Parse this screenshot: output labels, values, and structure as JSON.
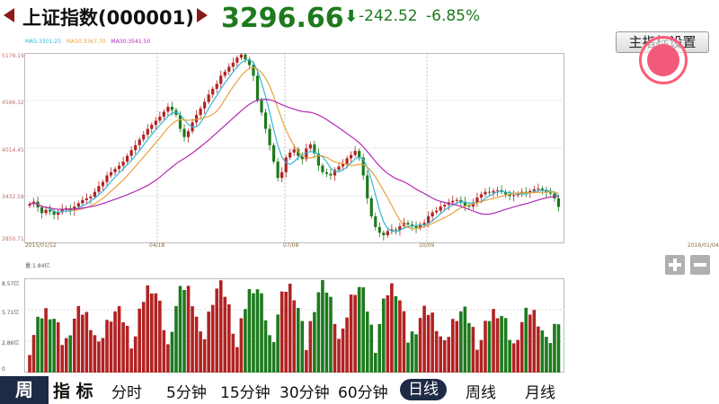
{
  "header": {
    "title": "上证指数(000001)",
    "price": "3296.66",
    "change_arrow": "⬇",
    "change": "-242.52",
    "change_pct": "-6.85%",
    "price_color": "#1d7a1d",
    "arrow_color": "#8b1a1a"
  },
  "ma_legend": {
    "ma5": "MA5:3301.25",
    "ma10": "MA10:3367.70",
    "ma30": "MA30:3541.50",
    "colors": {
      "ma5": "#34b6d6",
      "ma10": "#e8a23d",
      "ma30": "#b228b8"
    }
  },
  "buttons": {
    "indicator_settings": "主指标设置"
  },
  "price_axis": {
    "labels": [
      "5178.19",
      "4596.32",
      "4014.45",
      "3432.58",
      "2850.71"
    ]
  },
  "date_axis": {
    "labels": [
      "2015/01/12",
      "04/18",
      "07/08",
      "10/09",
      "2016/01/04"
    ]
  },
  "volume": {
    "title": "量:1.84亿",
    "axis_labels": [
      "8.57亿",
      "5.71亿",
      "2.86亿",
      "0"
    ]
  },
  "tabs": {
    "week": "周",
    "indicator": "指 标",
    "items": [
      "分时",
      "5分钟",
      "15分钟",
      "30分钟",
      "60分钟",
      "日线",
      "周线",
      "月线"
    ],
    "active": "日线"
  },
  "colors": {
    "up": "#b22222",
    "down": "#1d7a1d",
    "grid": "#d8d8d8",
    "tab_active_bg": "#1f2b45"
  },
  "chart_data": {
    "type": "candlestick",
    "ylim": [
      2850.71,
      5178.19
    ],
    "x": [
      "2015/01/12",
      "04/18",
      "07/08",
      "10/09",
      "2016/01/04"
    ],
    "close_series": [
      3330,
      3360,
      3290,
      3220,
      3260,
      3240,
      3200,
      3230,
      3270,
      3280,
      3250,
      3300,
      3340,
      3380,
      3400,
      3420,
      3480,
      3550,
      3600,
      3680,
      3720,
      3760,
      3800,
      3850,
      3920,
      3990,
      4050,
      4120,
      4180,
      4250,
      4300,
      4350,
      4400,
      4460,
      4520,
      4480,
      4420,
      4250,
      4150,
      4220,
      4330,
      4420,
      4500,
      4580,
      4670,
      4740,
      4800,
      4900,
      4950,
      5010,
      5060,
      5120,
      5160,
      5100,
      5030,
      4900,
      4600,
      4450,
      4250,
      4050,
      3850,
      3650,
      3720,
      3900,
      3960,
      4000,
      3920,
      3880,
      4010,
      4060,
      3950,
      3800,
      3720,
      3700,
      3680,
      3750,
      3790,
      3820,
      3890,
      3930,
      3980,
      3900,
      3680,
      3400,
      3180,
      3050,
      2980,
      2950,
      3000,
      3020,
      3010,
      3060,
      3100,
      3080,
      3060,
      3040,
      3080,
      3100,
      3180,
      3230,
      3250,
      3300,
      3320,
      3350,
      3370,
      3380,
      3360,
      3310,
      3300,
      3350,
      3410,
      3450,
      3480,
      3470,
      3490,
      3500,
      3480,
      3450,
      3430,
      3440,
      3460,
      3480,
      3470,
      3490,
      3510,
      3520,
      3500,
      3470,
      3460,
      3400,
      3296
    ],
    "volume_range": [
      0,
      8.57
    ]
  }
}
